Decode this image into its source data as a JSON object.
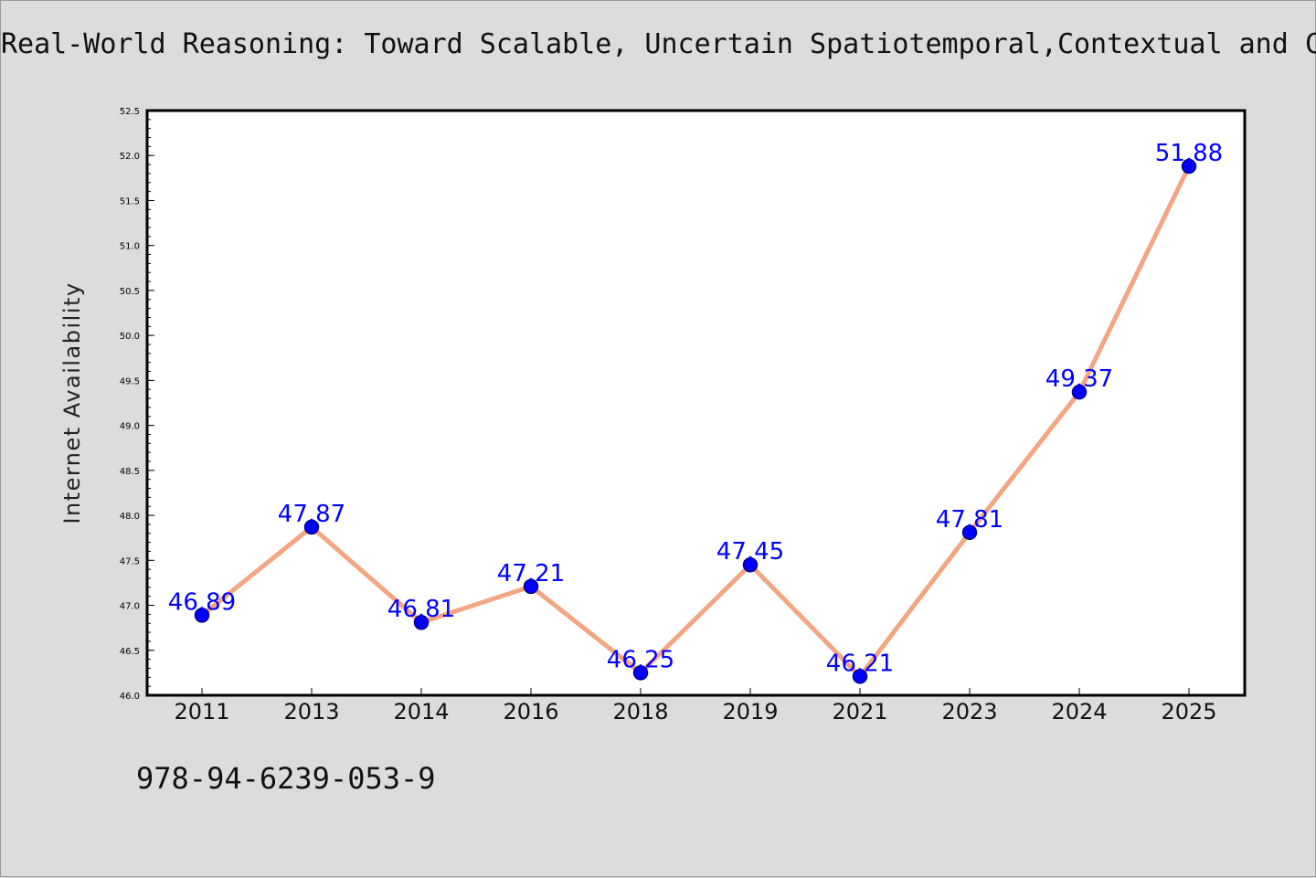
{
  "figure": {
    "title": "Real-World Reasoning: Toward Scalable, Uncertain Spatiotemporal,Contextual and C",
    "isbn": "978-94-6239-053-9"
  },
  "chart_data": {
    "type": "line",
    "title": "Real-World Reasoning: Toward Scalable, Uncertain Spatiotemporal,Contextual and C",
    "xlabel": "",
    "ylabel": "Internet Availability",
    "categories": [
      "2011",
      "2013",
      "2014",
      "2016",
      "2018",
      "2019",
      "2021",
      "2023",
      "2024",
      "2025"
    ],
    "series": [
      {
        "values": [
          46.89,
          47.87,
          46.81,
          47.21,
          46.25,
          47.45,
          46.21,
          47.81,
          49.37,
          51.88
        ]
      }
    ],
    "data_labels": [
      "46.89",
      "47.87",
      "46.81",
      "47.21",
      "46.25",
      "47.45",
      "46.21",
      "47.81",
      "49.37",
      "51.88"
    ],
    "ylim": [
      46.0,
      52.5
    ],
    "yticks": [
      "46.0",
      "46.5",
      "47.0",
      "47.5",
      "48.0",
      "48.5",
      "49.0",
      "49.5",
      "50.0",
      "50.5",
      "51.0",
      "51.5",
      "52.0",
      "52.5"
    ],
    "grid": false,
    "legend": "none",
    "colors": {
      "line": "#f4a582",
      "marker": "#0000ff",
      "label": "#0000ff",
      "figure_bg": "#dcdcdc",
      "plot_bg": "#ffffff"
    }
  }
}
